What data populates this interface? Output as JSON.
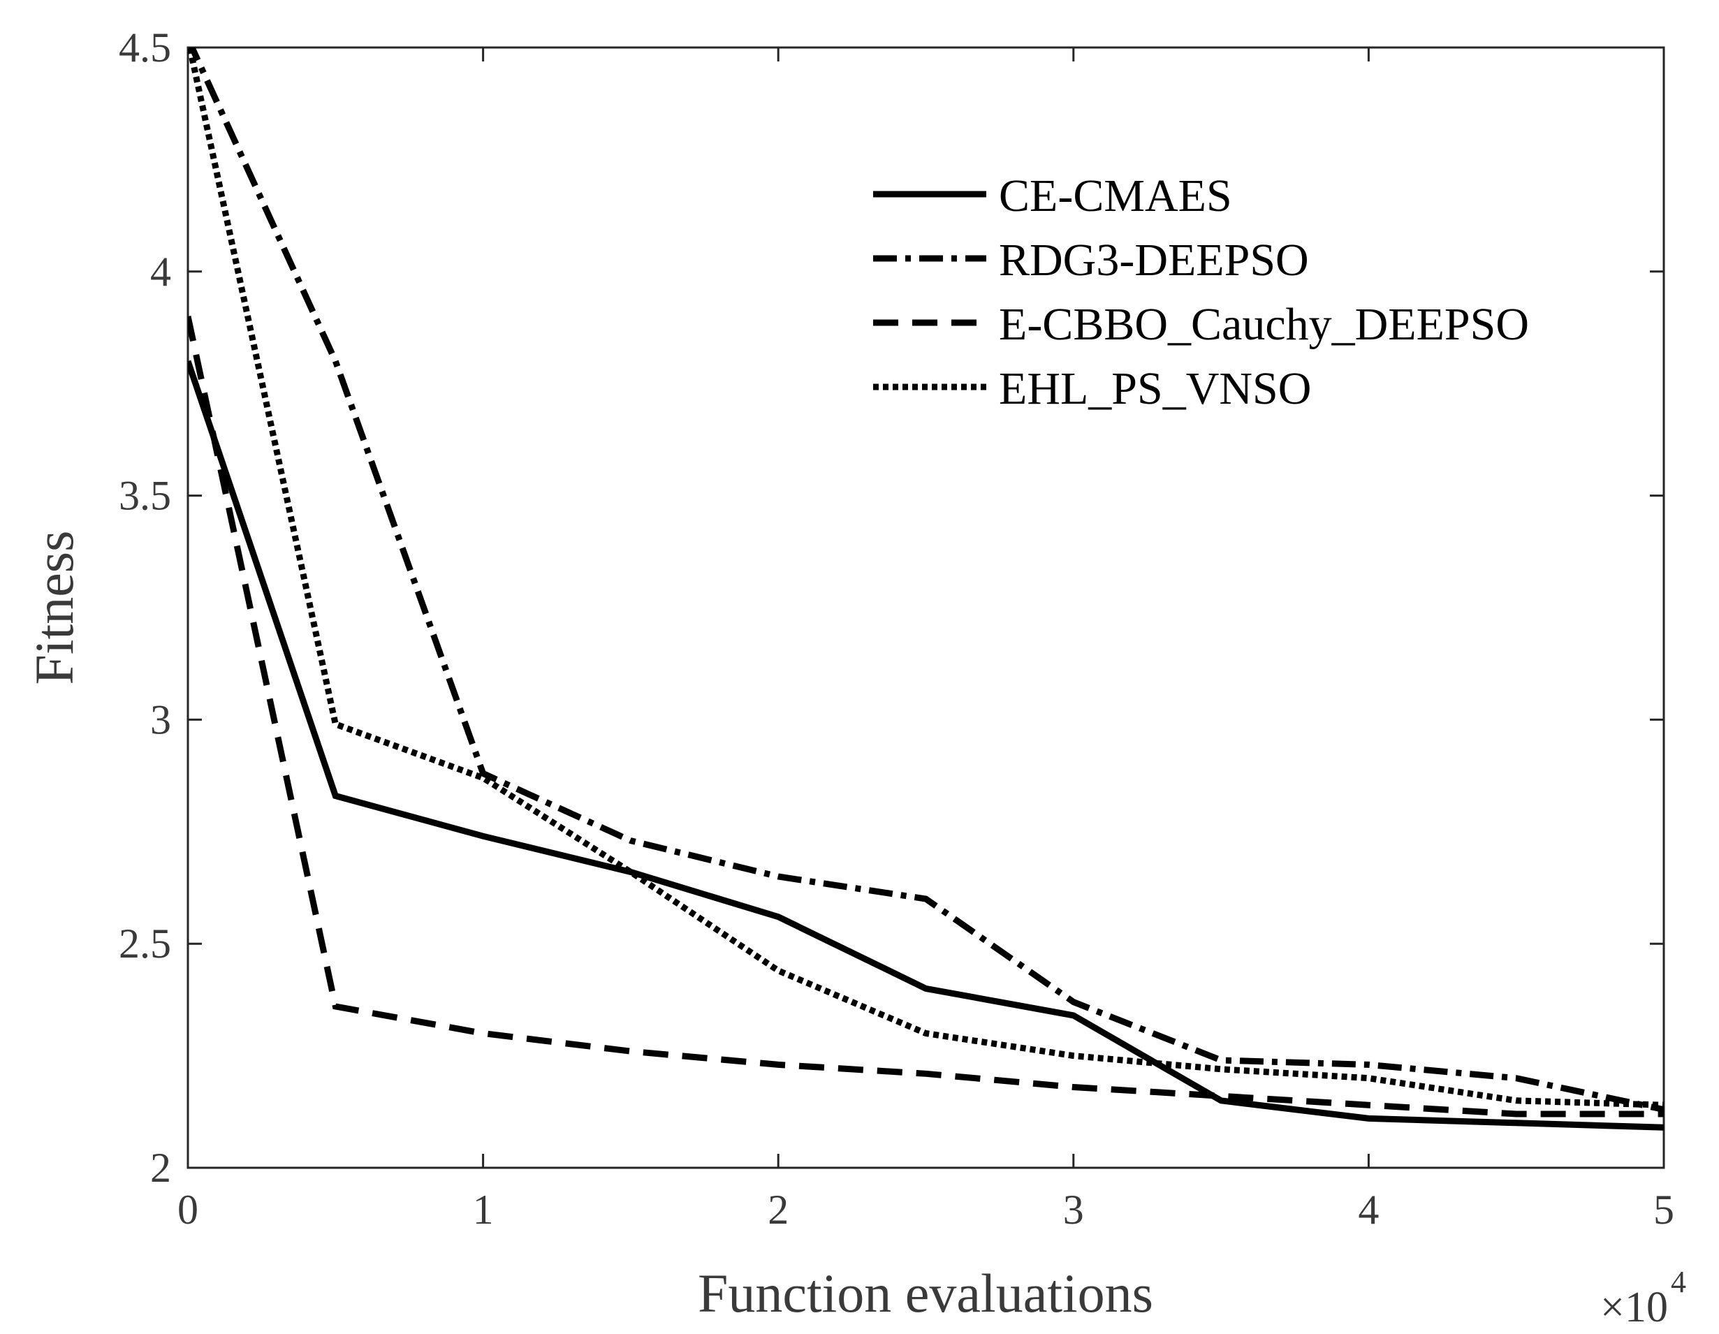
{
  "chart_data": {
    "type": "line",
    "title": "",
    "xlabel": "Function evaluations",
    "ylabel": "Fitness",
    "x_exponent_label": "×10",
    "x_exponent_power": "4",
    "xlim": [
      0,
      5
    ],
    "ylim": [
      2,
      4.5
    ],
    "x_ticks": [
      0,
      1,
      2,
      3,
      4,
      5
    ],
    "x_tick_labels": [
      "0",
      "1",
      "2",
      "3",
      "4",
      "5"
    ],
    "y_ticks": [
      2,
      2.5,
      3,
      3.5,
      4,
      4.5
    ],
    "y_tick_labels": [
      "2",
      "2.5",
      "3",
      "3.5",
      "4",
      "4.5"
    ],
    "grid": false,
    "legend_position": "top-right",
    "series": [
      {
        "name": "CE-CMAES",
        "style": "solid",
        "x": [
          0,
          0.5,
          1,
          1.5,
          2,
          2.5,
          3,
          3.5,
          4,
          4.5,
          5
        ],
        "values": [
          3.8,
          2.83,
          2.74,
          2.66,
          2.56,
          2.4,
          2.34,
          2.15,
          2.11,
          2.1,
          2.09
        ]
      },
      {
        "name": "RDG3-DEEPSO",
        "style": "dashdot",
        "x": [
          0,
          0.5,
          1,
          1.5,
          2,
          2.5,
          3,
          3.5,
          4,
          4.5,
          5
        ],
        "values": [
          4.52,
          3.8,
          2.88,
          2.73,
          2.65,
          2.6,
          2.37,
          2.24,
          2.23,
          2.2,
          2.13
        ]
      },
      {
        "name": "E-CBBO_Cauchy_DEEPSO",
        "style": "dashed",
        "x": [
          0,
          0.5,
          1,
          1.5,
          2,
          2.5,
          3,
          3.5,
          4,
          4.5,
          5
        ],
        "values": [
          3.9,
          2.36,
          2.3,
          2.26,
          2.23,
          2.21,
          2.18,
          2.16,
          2.14,
          2.12,
          2.12
        ]
      },
      {
        "name": "EHL_PS_VNSO",
        "style": "dotted",
        "x": [
          0,
          0.5,
          1,
          1.5,
          2,
          2.5,
          3,
          3.5,
          4,
          4.5,
          5
        ],
        "values": [
          4.52,
          2.99,
          2.87,
          2.66,
          2.44,
          2.3,
          2.25,
          2.22,
          2.2,
          2.15,
          2.14
        ]
      }
    ]
  }
}
